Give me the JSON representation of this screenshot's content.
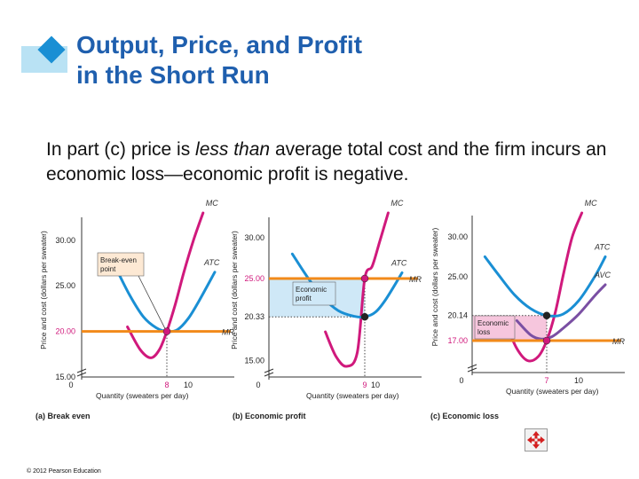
{
  "slide": {
    "title_line1": "Output, Price, and Profit",
    "title_line2": "in the Short Run",
    "body_before": "In part (c) price is ",
    "body_emphasis": "less than",
    "body_after": " average total cost and the firm incurs an economic loss—economic profit is negative.",
    "copyright": "© 2012 Pearson Education",
    "nav_icon": "four-arrow-move-icon",
    "bullet_icon": "diamond-bullet-icon"
  },
  "colors": {
    "title": "#1f5fae",
    "mc": "#d0197c",
    "atc": "#1a8fd4",
    "avc": "#7a4fa3",
    "mr": "#f28a1a",
    "profit_fill": "#cfe8f7",
    "loss_fill": "#f6c6dd",
    "nav_icon": "#d42020"
  },
  "chart_data": [
    {
      "type": "line",
      "caption": "(a) Break even",
      "xlabel": "Quantity (sweaters per day)",
      "ylabel": "Price and cost (dollars per sweater)",
      "xlim": [
        0,
        14
      ],
      "ylim": [
        15,
        33
      ],
      "axis_break_y": true,
      "x_ticks": [
        0,
        8,
        10
      ],
      "x_ticks_highlight": [
        8
      ],
      "y_ticks": [
        15,
        20,
        25,
        30
      ],
      "y_tick_labels": [
        "15.00",
        "20.00",
        "25.00",
        "30.00"
      ],
      "y_ticks_highlight": [
        20
      ],
      "series": [
        {
          "name": "MC",
          "x": [
            4.3,
            5.5,
            6.5,
            7.3,
            8,
            8.8,
            9.6,
            10.5,
            11.4
          ],
          "y": [
            20.5,
            18,
            17.1,
            18,
            20,
            23,
            26.5,
            30,
            33
          ]
        },
        {
          "name": "ATC",
          "x": [
            3.2,
            4.5,
            5.8,
            7,
            8,
            9,
            10,
            11,
            12.5
          ],
          "y": [
            27,
            24,
            21.6,
            20.4,
            20,
            20.2,
            21.4,
            23.3,
            26.5
          ]
        },
        {
          "name": "MR",
          "x": [
            0,
            14
          ],
          "y": [
            20,
            20
          ]
        }
      ],
      "points": [
        {
          "x": 8,
          "y": 20
        }
      ],
      "annotation": {
        "text_line1": "Break-even",
        "text_line2": "point"
      }
    },
    {
      "type": "line",
      "caption": "(b) Economic profit",
      "xlabel": "Quantity (sweaters per day)",
      "ylabel": "Price and cost (dollars per sweater)",
      "xlim": [
        0,
        14
      ],
      "ylim": [
        13,
        33
      ],
      "axis_break_y": true,
      "x_ticks": [
        0,
        9,
        10
      ],
      "x_ticks_highlight": [
        9
      ],
      "y_ticks": [
        15,
        20.33,
        25,
        30
      ],
      "y_tick_labels": [
        "15.00",
        "20.33",
        "25.00",
        "30.00"
      ],
      "y_ticks_highlight": [
        25
      ],
      "series": [
        {
          "name": "MC",
          "x": [
            5.3,
            6.3,
            7.3,
            8.3,
            9,
            9.7,
            10.4,
            11.2
          ],
          "y": [
            18.5,
            15.5,
            14.3,
            16,
            25,
            26.5,
            29.5,
            33
          ]
        },
        {
          "name": "ATC",
          "x": [
            2.2,
            3.6,
            5,
            6.5,
            8,
            9,
            10,
            11,
            12.5
          ],
          "y": [
            28,
            25.2,
            22.8,
            21.1,
            20.4,
            20.33,
            20.9,
            22.5,
            25.7
          ]
        },
        {
          "name": "MR",
          "x": [
            0,
            14
          ],
          "y": [
            25,
            25
          ]
        }
      ],
      "points": [
        {
          "x": 9,
          "y": 25
        },
        {
          "x": 9,
          "y": 20.33
        }
      ],
      "shaded_region": {
        "x": [
          0,
          9
        ],
        "y": [
          20.33,
          25
        ]
      },
      "annotation": {
        "text_line1": "Economic",
        "text_line2": "profit"
      }
    },
    {
      "type": "line",
      "caption": "(c) Economic loss",
      "xlabel": "Quantity (sweaters per day)",
      "ylabel": "Price and cost (dollars per sweater)",
      "xlim": [
        0,
        14
      ],
      "ylim": [
        13,
        33
      ],
      "axis_break_y": true,
      "x_ticks": [
        0,
        7,
        10
      ],
      "x_ticks_highlight": [
        7
      ],
      "y_ticks": [
        17,
        20.14,
        25,
        30
      ],
      "y_tick_labels": [
        "17.00",
        "20.14",
        "25.00",
        "30.00"
      ],
      "y_ticks_highlight": [
        17
      ],
      "series": [
        {
          "name": "MC",
          "x": [
            3.2,
            4.2,
            5.2,
            6.2,
            7,
            7.8,
            8.6,
            9.4,
            10.3
          ],
          "y": [
            19,
            16,
            14.5,
            15,
            17,
            20.5,
            25.5,
            30,
            33
          ]
        },
        {
          "name": "ATC",
          "x": [
            1.2,
            2.5,
            4,
            5.5,
            7,
            8.5,
            10,
            11.5,
            12.5
          ],
          "y": [
            27.5,
            25.2,
            22.7,
            21,
            20.14,
            20.3,
            22,
            25,
            27.5
          ]
        },
        {
          "name": "AVC",
          "x": [
            4.2,
            5.5,
            6.5,
            7.5,
            8.5,
            10,
            11.5,
            12.5
          ],
          "y": [
            19.5,
            17.7,
            17.2,
            17.5,
            18.5,
            20.3,
            22.6,
            24
          ]
        },
        {
          "name": "MR",
          "x": [
            0,
            14
          ],
          "y": [
            17,
            17
          ]
        }
      ],
      "points": [
        {
          "x": 7,
          "y": 20.14
        },
        {
          "x": 7,
          "y": 17
        }
      ],
      "shaded_region": {
        "x": [
          0,
          7
        ],
        "y": [
          17,
          20.14
        ]
      },
      "annotation": {
        "text_line1": "Economic",
        "text_line2": "loss"
      }
    }
  ]
}
